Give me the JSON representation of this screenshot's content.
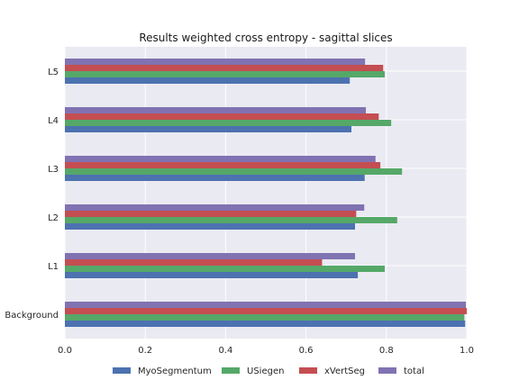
{
  "chart_data": {
    "type": "bar",
    "orientation": "horizontal",
    "title": "Results weighted cross entropy - sagittal slices",
    "xlabel": "",
    "ylabel": "",
    "xlim": [
      0,
      1.0
    ],
    "xticks": [
      "0.0",
      "0.2",
      "0.4",
      "0.6",
      "0.8",
      "1.0"
    ],
    "categories": [
      "Background",
      "L1",
      "L2",
      "L3",
      "L4",
      "L5"
    ],
    "series": [
      {
        "name": "MyoSegmentum",
        "color": "#4c72b0",
        "values": [
          0.996,
          0.729,
          0.722,
          0.746,
          0.713,
          0.709
        ]
      },
      {
        "name": "USiegen",
        "color": "#55a868",
        "values": [
          0.994,
          0.796,
          0.827,
          0.839,
          0.812,
          0.796
        ]
      },
      {
        "name": "xVertSeg",
        "color": "#c44e52",
        "values": [
          1.0,
          0.64,
          0.725,
          0.785,
          0.781,
          0.792
        ]
      },
      {
        "name": "total",
        "color": "#8172b2",
        "values": [
          0.998,
          0.722,
          0.745,
          0.773,
          0.749,
          0.747
        ]
      }
    ],
    "grid": true,
    "legend_position": "bottom"
  }
}
